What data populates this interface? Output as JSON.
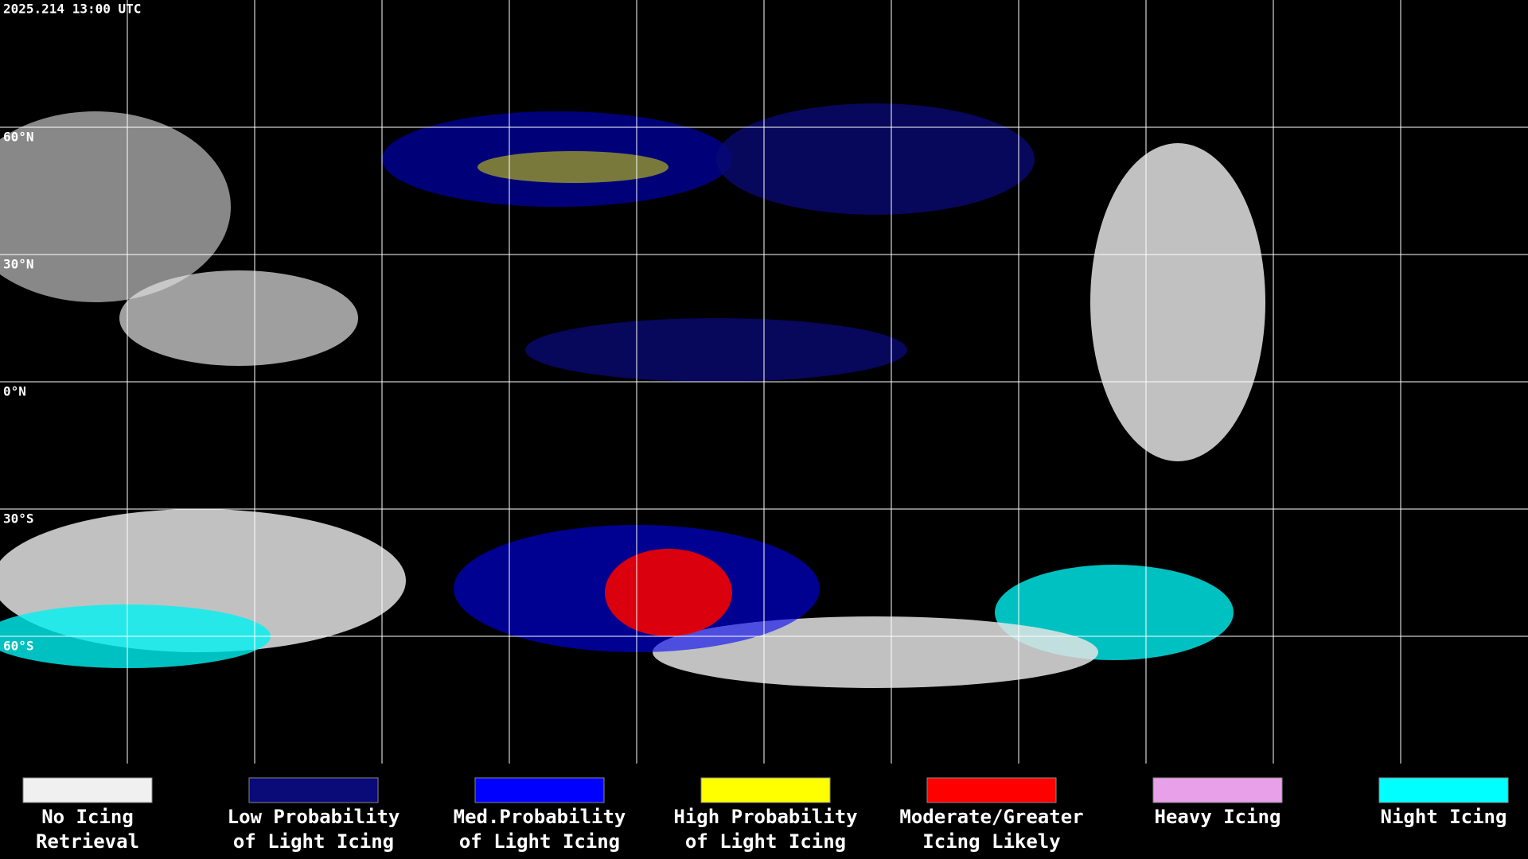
{
  "header": {
    "timestamp": "2025.214 13:00 UTC"
  },
  "map": {
    "latitude_labels": [
      "60°N",
      "30°N",
      "0°N",
      "30°S",
      "60°S"
    ]
  },
  "legend": {
    "items": [
      {
        "label_lines": [
          "No Icing",
          "Retrieval"
        ],
        "color": "#f0f0f0"
      },
      {
        "label_lines": [
          "Low Probability",
          "of Light Icing"
        ],
        "color": "#0a0a78"
      },
      {
        "label_lines": [
          "Med.Probability",
          "of Light Icing"
        ],
        "color": "#0000ff"
      },
      {
        "label_lines": [
          "High Probability",
          "of Light Icing"
        ],
        "color": "#ffff00"
      },
      {
        "label_lines": [
          "Moderate/Greater",
          "Icing Likely"
        ],
        "color": "#ff0000"
      },
      {
        "label_lines": [
          "Heavy Icing"
        ],
        "color": "#e8a0e8"
      },
      {
        "label_lines": [
          "Night Icing"
        ],
        "color": "#00ffff"
      }
    ]
  }
}
